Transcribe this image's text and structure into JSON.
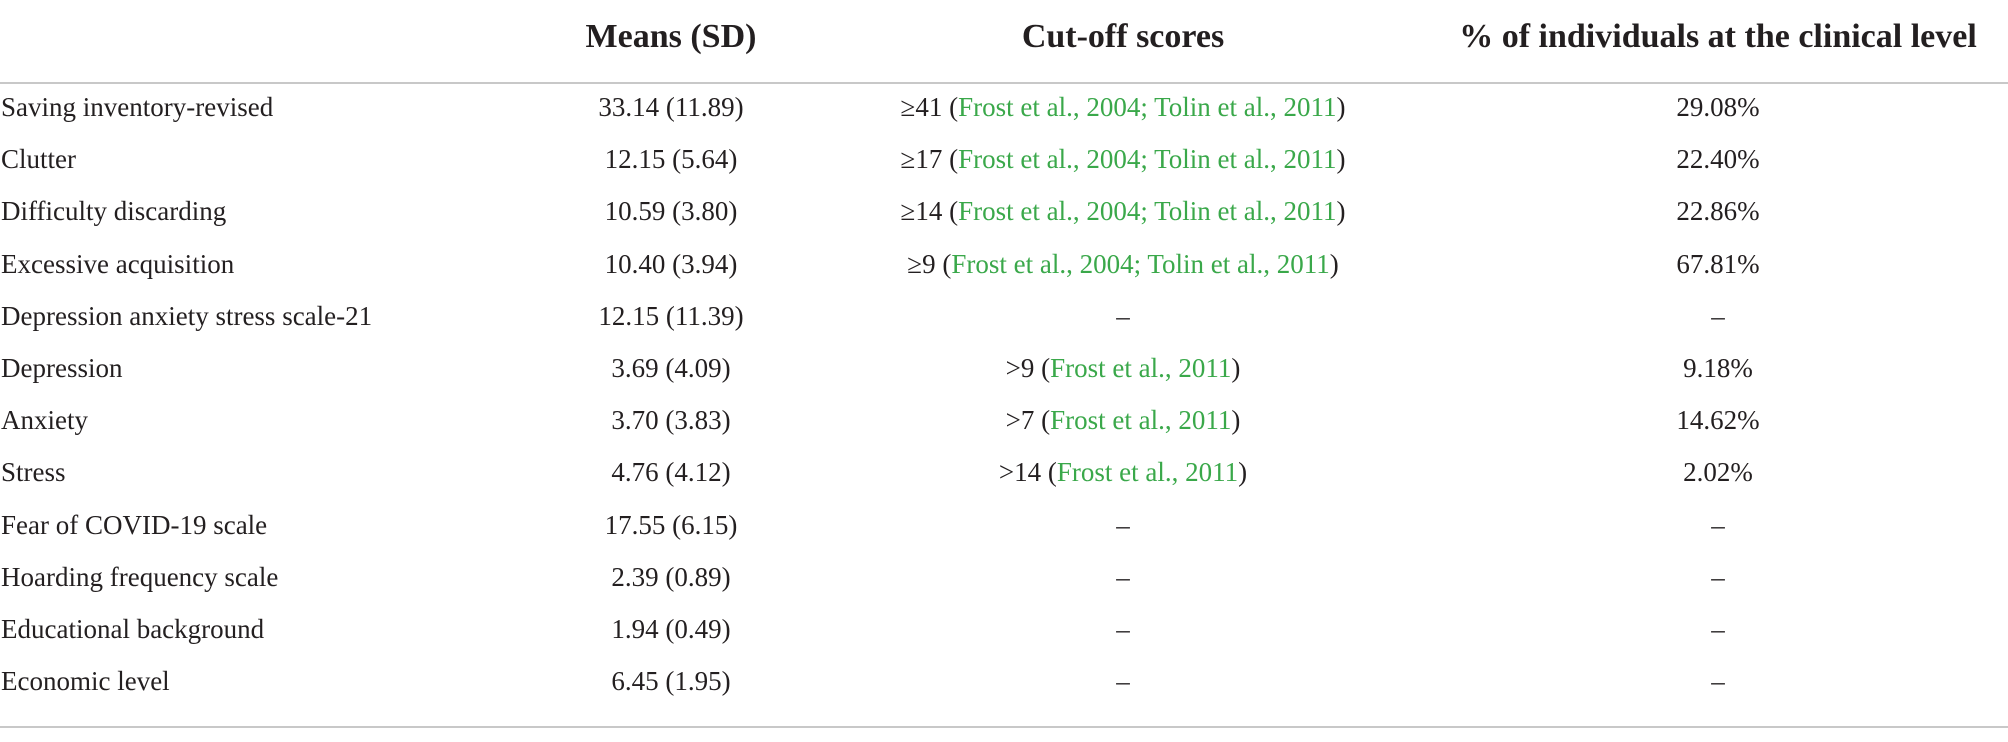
{
  "headers": {
    "means": "Means (SD)",
    "cutoff": "Cut-off scores",
    "pct": "% of individuals at the clinical level"
  },
  "rows": [
    {
      "label": "Saving inventory-revised",
      "means": "33.14 (11.89)",
      "cutoff_prefix": "≥41 (",
      "cutoff_cite": "Frost et al., 2004; Tolin et al., 2011",
      "cutoff_suffix": ")",
      "pct": "29.08%"
    },
    {
      "label": "Clutter",
      "means": "12.15 (5.64)",
      "cutoff_prefix": "≥17 (",
      "cutoff_cite": "Frost et al., 2004; Tolin et al., 2011",
      "cutoff_suffix": ")",
      "pct": "22.40%"
    },
    {
      "label": "Difficulty discarding",
      "means": "10.59 (3.80)",
      "cutoff_prefix": "≥14 (",
      "cutoff_cite": "Frost et al., 2004; Tolin et al., 2011",
      "cutoff_suffix": ")",
      "pct": "22.86%"
    },
    {
      "label": "Excessive acquisition",
      "means": "10.40 (3.94)",
      "cutoff_prefix": "≥9 (",
      "cutoff_cite": "Frost et al., 2004; Tolin et al., 2011",
      "cutoff_suffix": ")",
      "pct": "67.81%"
    },
    {
      "label": "Depression anxiety stress scale-21",
      "means": "12.15 (11.39)",
      "cutoff_prefix": "–",
      "cutoff_cite": "",
      "cutoff_suffix": "",
      "pct": "–"
    },
    {
      "label": "Depression",
      "means": "3.69 (4.09)",
      "cutoff_prefix": ">9 (",
      "cutoff_cite": "Frost et al., 2011",
      "cutoff_suffix": ")",
      "pct": "9.18%"
    },
    {
      "label": "Anxiety",
      "means": "3.70 (3.83)",
      "cutoff_prefix": ">7 (",
      "cutoff_cite": "Frost et al., 2011",
      "cutoff_suffix": ")",
      "pct": "14.62%"
    },
    {
      "label": "Stress",
      "means": "4.76 (4.12)",
      "cutoff_prefix": ">14 (",
      "cutoff_cite": "Frost et al., 2011",
      "cutoff_suffix": ")",
      "pct": "2.02%"
    },
    {
      "label": "Fear of COVID-19 scale",
      "means": "17.55 (6.15)",
      "cutoff_prefix": "–",
      "cutoff_cite": "",
      "cutoff_suffix": "",
      "pct": "–"
    },
    {
      "label": "Hoarding frequency scale",
      "means": "2.39 (0.89)",
      "cutoff_prefix": "–",
      "cutoff_cite": "",
      "cutoff_suffix": "",
      "pct": "–"
    },
    {
      "label": "Educational background",
      "means": "1.94 (0.49)",
      "cutoff_prefix": "–",
      "cutoff_cite": "",
      "cutoff_suffix": "",
      "pct": "–"
    },
    {
      "label": "Economic level",
      "means": "6.45 (1.95)",
      "cutoff_prefix": "–",
      "cutoff_cite": "",
      "cutoff_suffix": "",
      "pct": "–"
    }
  ],
  "colors": {
    "text": "#231f20",
    "citation": "#3aa84a",
    "rule": "#c8c8c8"
  }
}
